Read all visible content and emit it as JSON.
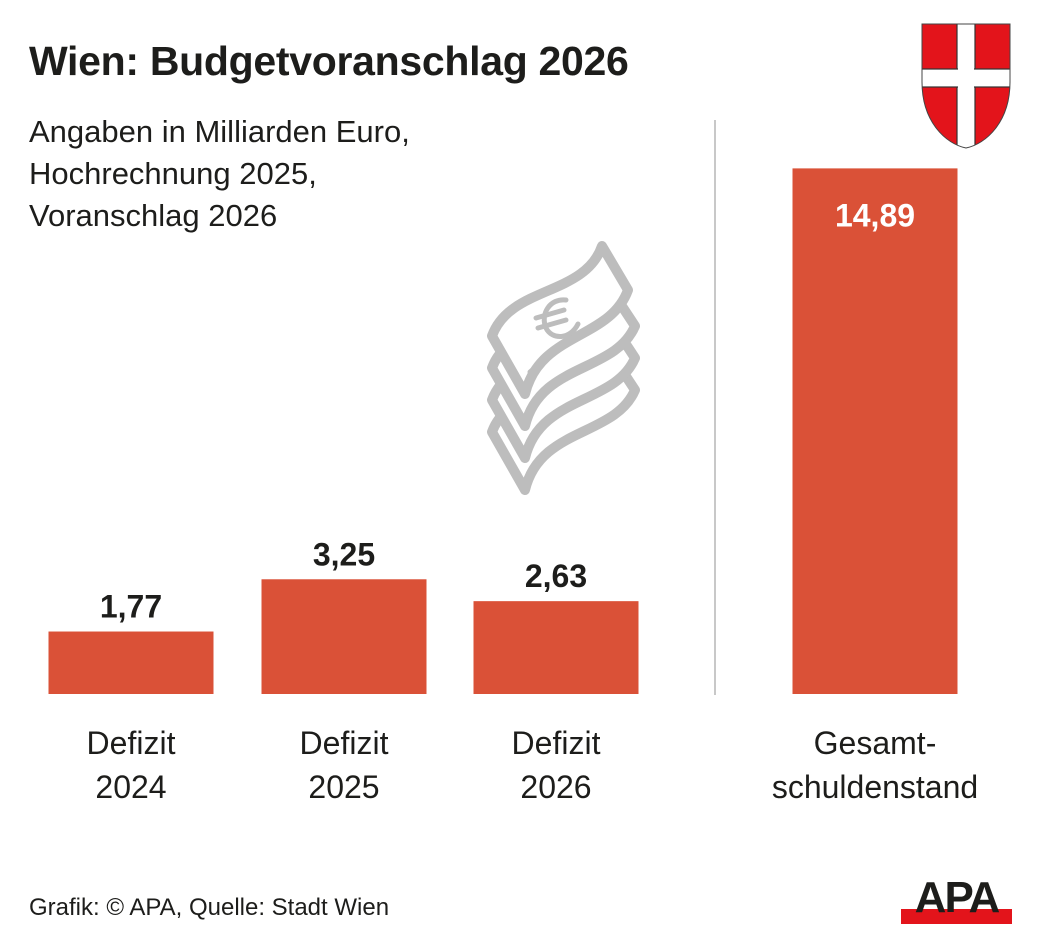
{
  "header": {
    "title": "Wien: Budgetvoranschlag 2026",
    "subtitle_lines": [
      "Angaben in Milliarden Euro,",
      "Hochrechnung 2025,",
      "Voranschlag 2026"
    ]
  },
  "icons": {
    "crest": "vienna-coat-of-arms-icon",
    "money": "euro-banknote-stack-icon"
  },
  "footer": {
    "credit": "Grafik: © APA, Quelle: Stadt Wien",
    "logo_text": "APA"
  },
  "colors": {
    "bar": "#da5137",
    "text": "#1d1d1b",
    "crest_red": "#e3141b",
    "logo_red": "#e3141b",
    "divider": "#c8c8c8",
    "icon_gray": "#bdbdbd"
  },
  "chart_data": {
    "type": "bar",
    "title": "Wien: Budgetvoranschlag 2026",
    "xlabel": "",
    "ylabel": "Angaben in Milliarden Euro",
    "ylim": [
      0,
      15
    ],
    "grid": false,
    "categories": [
      [
        "Defizit",
        "2024"
      ],
      [
        "Defizit",
        "2025"
      ],
      [
        "Defizit",
        "2026"
      ],
      [
        "Gesamt-",
        "schuldenstand"
      ]
    ],
    "values": [
      1.77,
      3.25,
      2.63,
      14.89
    ],
    "value_labels": [
      "1,77",
      "3,25",
      "2,63",
      "14,89"
    ],
    "label_inside": [
      false,
      false,
      false,
      true
    ]
  }
}
